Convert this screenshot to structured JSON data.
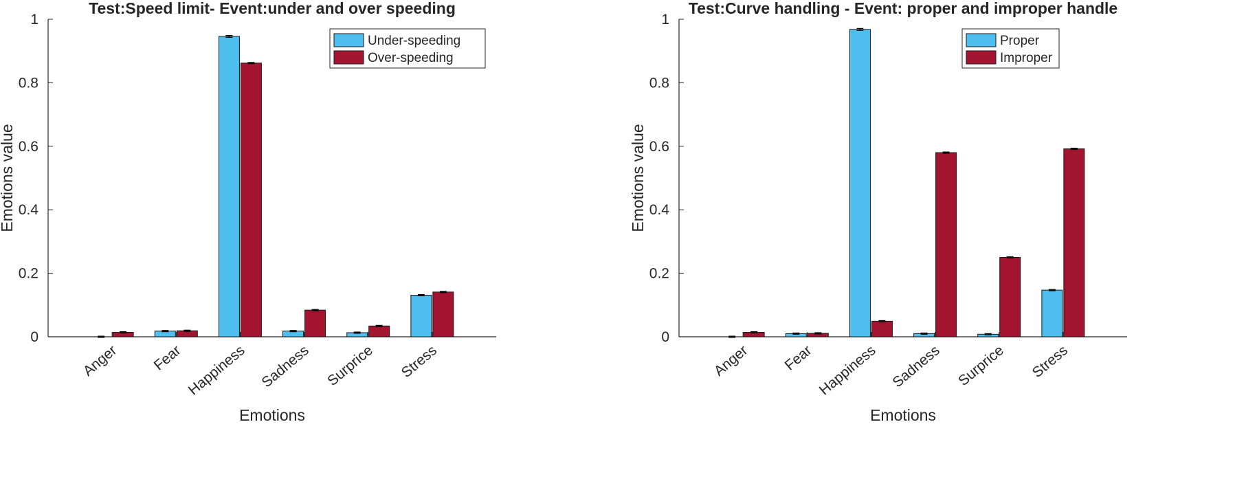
{
  "chart_data": [
    {
      "type": "bar",
      "title": "Test:Speed limit- Event:under and over speeding",
      "xlabel": "Emotions",
      "ylabel": "Emotions value",
      "ylim": [
        0,
        1
      ],
      "yticks": [
        "0",
        "0.2",
        "0.4",
        "0.6",
        "0.8",
        "1"
      ],
      "categories": [
        "Anger",
        "Fear",
        "Happiness",
        "Sadness",
        "Surprice",
        "Stress"
      ],
      "series": [
        {
          "name": "Under-speeding",
          "color": "#4DBEEE",
          "values": [
            0.0,
            0.018,
            0.946,
            0.018,
            0.013,
            0.131
          ],
          "errors": [
            0.002,
            0.002,
            0.003,
            0.002,
            0.002,
            0.002
          ]
        },
        {
          "name": "Over-speeding",
          "color": "#A2142F",
          "values": [
            0.014,
            0.019,
            0.862,
            0.084,
            0.034,
            0.141
          ],
          "errors": [
            0.002,
            0.002,
            0.002,
            0.002,
            0.002,
            0.002
          ]
        }
      ],
      "legend": "top-right",
      "grid": false
    },
    {
      "type": "bar",
      "title": "Test:Curve handling - Event: proper and improper handle",
      "xlabel": "Emotions",
      "ylabel": "Emotions value",
      "ylim": [
        0,
        1
      ],
      "yticks": [
        "0",
        "0.2",
        "0.4",
        "0.6",
        "0.8",
        "1"
      ],
      "categories": [
        "Anger",
        "Fear",
        "Happiness",
        "Sadness",
        "Surprice",
        "Stress"
      ],
      "series": [
        {
          "name": "Proper",
          "color": "#4DBEEE",
          "values": [
            0.0,
            0.01,
            0.968,
            0.01,
            0.008,
            0.147
          ],
          "errors": [
            0.002,
            0.002,
            0.003,
            0.002,
            0.002,
            0.002
          ]
        },
        {
          "name": "Improper",
          "color": "#A2142F",
          "values": [
            0.014,
            0.011,
            0.049,
            0.58,
            0.25,
            0.592
          ],
          "errors": [
            0.002,
            0.002,
            0.002,
            0.002,
            0.002,
            0.002
          ]
        }
      ],
      "legend": "top-right",
      "grid": false
    }
  ]
}
